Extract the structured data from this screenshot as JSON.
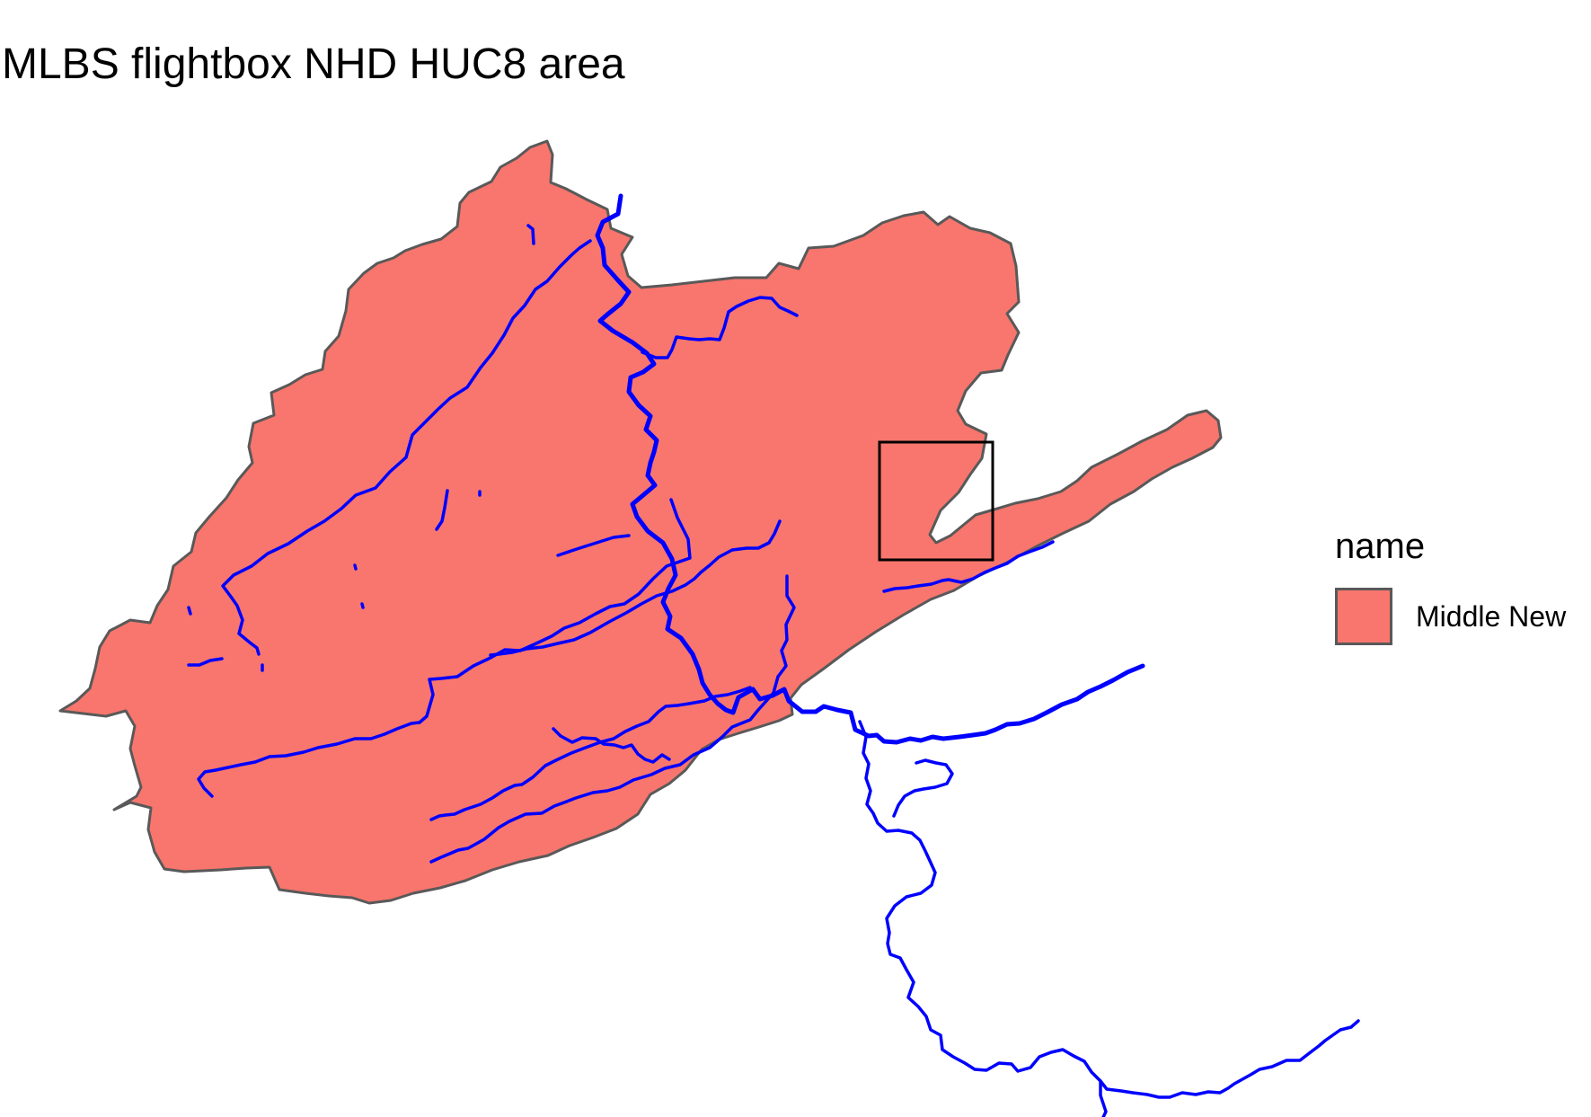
{
  "title": "MLBS flightbox NHD HUC8 area",
  "legend": {
    "title": "name",
    "items": [
      {
        "label": "Middle New",
        "fill": "#f8766d",
        "outline": "#595959"
      }
    ]
  },
  "colors": {
    "huc_fill": "#f8766d",
    "huc_outline": "#595959",
    "flowlines": "#0000ff",
    "flightbox": "#000000",
    "background": "#ffffff"
  }
}
